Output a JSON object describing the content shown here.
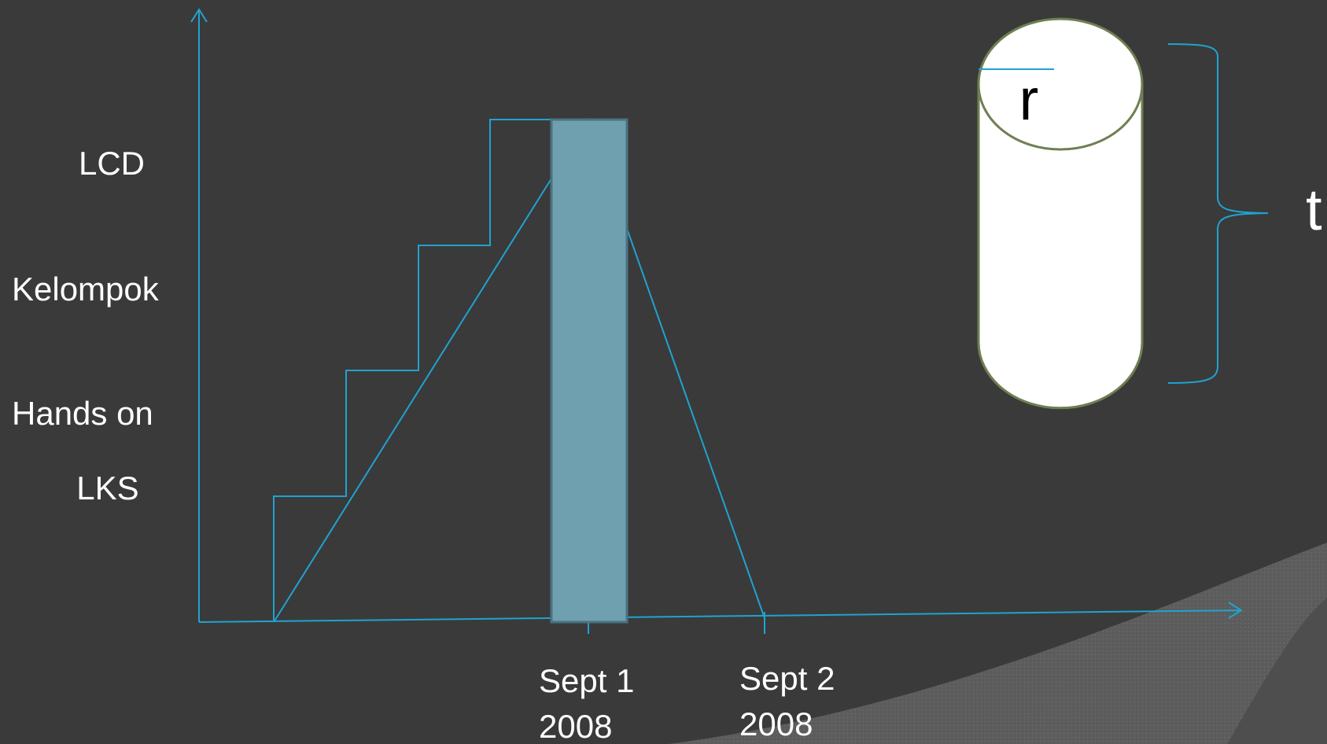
{
  "y_labels": {
    "lcd": "LCD",
    "kelompok": "Kelompok",
    "hands_on": "Hands on",
    "lks": "LKS"
  },
  "x_labels": {
    "sept1_line1": "Sept 1",
    "sept1_line2": "2008",
    "sept2_line1": "Sept 2",
    "sept2_line2": "2008"
  },
  "cylinder": {
    "radius_label": "r",
    "height_label": "t"
  },
  "colors": {
    "background": "#3a3a3a",
    "accent": "#1fa3d0",
    "highlight_bar": "#6fa0b0",
    "cylinder_outline": "#6f7f52"
  }
}
